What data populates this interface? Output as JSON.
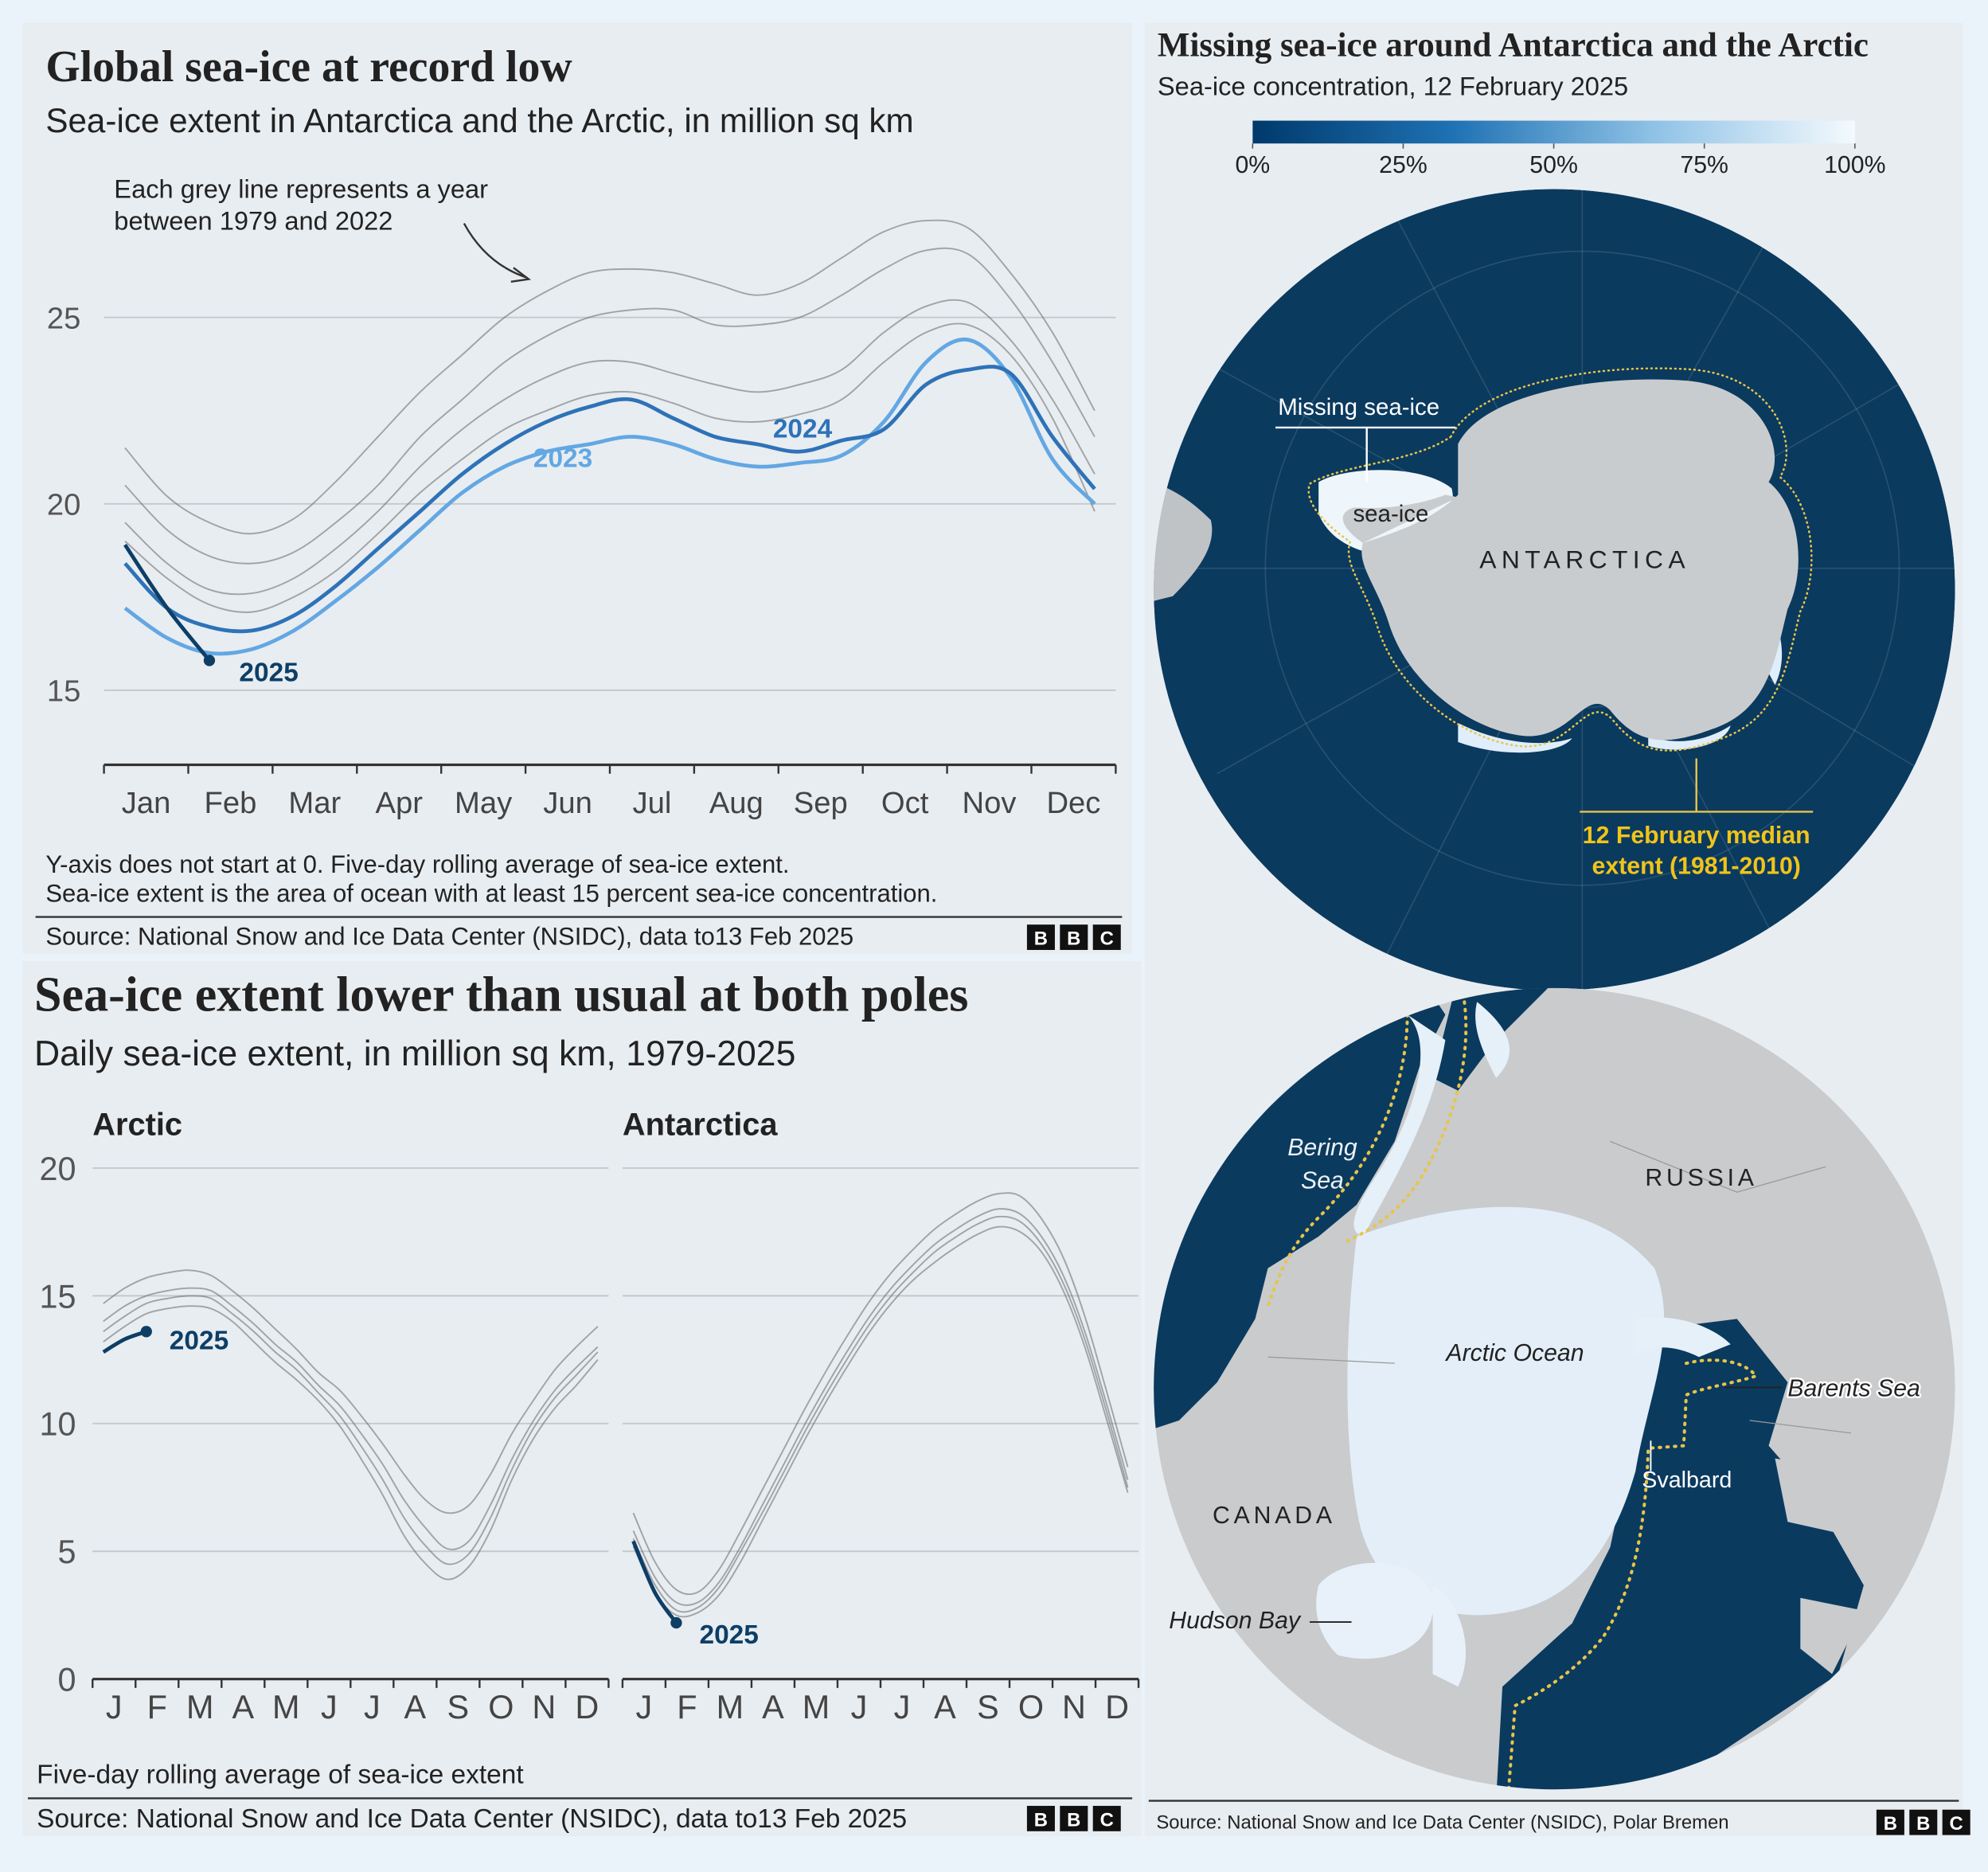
{
  "chart_data": [
    {
      "type": "line",
      "title": "Global sea-ice at record low",
      "subtitle": "Sea-ice extent in Antarctica and the Arctic, in million sq km",
      "annotation": [
        "Each grey line represents a year",
        "between 1979 and 2022"
      ],
      "categories": [
        "Jan",
        null,
        "Feb",
        null,
        "Mar",
        null,
        "Apr",
        null,
        "May",
        null,
        "Jun",
        null,
        "Jul",
        null,
        "Aug",
        null,
        "Sep",
        null,
        "Oct",
        null,
        "Nov",
        null,
        "Dec",
        null
      ],
      "series": [
        {
          "color": "#666666",
          "values": [
            21.5,
            20.2,
            19.5,
            19.2,
            19.6,
            20.6,
            21.8,
            23.0,
            24.0,
            25.0,
            25.7,
            26.2,
            26.3,
            26.2,
            25.9,
            25.6,
            25.9,
            26.6,
            27.3,
            27.6,
            27.4,
            26.2,
            24.6,
            22.5
          ]
        },
        {
          "color": "#666666",
          "values": [
            20.5,
            19.3,
            18.6,
            18.4,
            18.7,
            19.5,
            20.5,
            21.8,
            22.8,
            23.8,
            24.5,
            25.0,
            25.2,
            25.2,
            24.8,
            24.8,
            25.0,
            25.6,
            26.3,
            26.8,
            26.7,
            25.5,
            23.8,
            21.8
          ]
        },
        {
          "color": "#666666",
          "values": [
            19.5,
            18.4,
            17.7,
            17.6,
            18.0,
            18.8,
            19.8,
            21.0,
            22.0,
            22.8,
            23.4,
            23.8,
            23.8,
            23.5,
            23.2,
            23.0,
            23.2,
            23.6,
            24.6,
            25.3,
            25.4,
            24.4,
            22.8,
            20.8
          ]
        },
        {
          "color": "#666666",
          "values": [
            19.0,
            18.0,
            17.3,
            17.1,
            17.5,
            18.2,
            19.2,
            20.3,
            21.2,
            22.0,
            22.5,
            22.9,
            23.0,
            22.7,
            22.3,
            22.2,
            22.4,
            22.8,
            23.8,
            24.6,
            24.8,
            24.0,
            22.3,
            19.8
          ]
        },
        {
          "name": "2023",
          "color": "#63a7e3",
          "values": [
            17.2,
            16.4,
            16.0,
            16.1,
            16.6,
            17.4,
            18.3,
            19.3,
            20.3,
            21.0,
            21.4,
            21.6,
            21.8,
            21.6,
            21.2,
            21.0,
            21.1,
            21.3,
            22.2,
            23.8,
            24.4,
            23.4,
            21.2,
            20.0
          ]
        },
        {
          "name": "2024",
          "color": "#2e72b8",
          "values": [
            18.4,
            17.2,
            16.7,
            16.6,
            17.0,
            17.8,
            18.8,
            19.8,
            20.8,
            21.6,
            22.2,
            22.6,
            22.8,
            22.3,
            21.8,
            21.6,
            21.4,
            21.7,
            22.0,
            23.2,
            23.6,
            23.5,
            21.8,
            20.4
          ]
        },
        {
          "name": "2025",
          "color": "#0d3e66",
          "values": [
            18.9,
            17.2,
            15.8,
            null,
            null,
            null,
            null,
            null,
            null,
            null,
            null,
            null,
            null,
            null,
            null,
            null,
            null,
            null,
            null,
            null,
            null,
            null,
            null,
            null
          ]
        }
      ],
      "ylim": [
        13,
        28
      ],
      "yticks": [
        15,
        20,
        25
      ],
      "grid": true,
      "notes": [
        "Y-axis does not start at 0. Five-day rolling average of sea-ice extent.",
        "Sea-ice extent is the area of ocean with at least 15 percent sea-ice concentration."
      ],
      "source": "Source: National Snow and Ice Data Center (NSIDC), data to13 Feb 2025",
      "logo": "BBC"
    },
    {
      "type": "line",
      "title": "Sea-ice extent lower than usual at both poles",
      "subtitle": "Daily sea-ice extent, in million sq km, 1979-2025",
      "label": "Arctic",
      "categories": [
        "J",
        null,
        "F",
        null,
        "M",
        null,
        "A",
        null,
        "M",
        null,
        "J",
        null,
        "J",
        null,
        "A",
        null,
        "S",
        null,
        "O",
        null,
        "N",
        null,
        "D",
        null
      ],
      "series": [
        {
          "color": "#666666",
          "values": [
            14.7,
            15.3,
            15.7,
            15.9,
            16.0,
            15.8,
            15.2,
            14.5,
            13.7,
            12.9,
            12.0,
            11.3,
            10.3,
            9.2,
            8.0,
            7.0,
            6.5,
            6.8,
            8.0,
            9.6,
            10.9,
            12.1,
            13.0,
            13.8
          ]
        },
        {
          "color": "#666666",
          "values": [
            14.0,
            14.6,
            15.0,
            15.2,
            15.3,
            15.2,
            14.6,
            13.9,
            13.1,
            12.4,
            11.5,
            10.7,
            9.6,
            8.4,
            7.0,
            5.9,
            5.1,
            5.4,
            6.8,
            8.6,
            10.1,
            11.3,
            12.2,
            13.0
          ]
        },
        {
          "color": "#666666",
          "values": [
            13.6,
            14.2,
            14.7,
            14.9,
            15.0,
            14.9,
            14.3,
            13.6,
            12.8,
            12.1,
            11.2,
            10.3,
            9.1,
            7.8,
            6.3,
            5.2,
            4.5,
            4.9,
            6.3,
            8.2,
            9.8,
            11.0,
            11.9,
            12.8
          ]
        },
        {
          "color": "#666666",
          "values": [
            13.2,
            13.8,
            14.3,
            14.5,
            14.6,
            14.5,
            14.0,
            13.2,
            12.4,
            11.7,
            10.9,
            9.9,
            8.6,
            7.2,
            5.6,
            4.5,
            3.9,
            4.4,
            5.8,
            7.8,
            9.4,
            10.6,
            11.5,
            12.5
          ]
        },
        {
          "name": "2025",
          "color": "#0d3e66",
          "values": [
            12.8,
            13.3,
            13.6,
            null,
            null,
            null,
            null,
            null,
            null,
            null,
            null,
            null,
            null,
            null,
            null,
            null,
            null,
            null,
            null,
            null,
            null,
            null,
            null,
            null
          ]
        }
      ],
      "ylim": [
        0,
        20
      ],
      "yticks": [
        0,
        5,
        10,
        15,
        20
      ],
      "grid": true,
      "note": "Five-day rolling average of sea-ice extent",
      "source": "Source: National Snow and Ice Data Center (NSIDC), data to13 Feb 2025",
      "logo": "BBC"
    },
    {
      "type": "line",
      "label": "Antarctica",
      "categories": [
        "J",
        null,
        "F",
        null,
        "M",
        null,
        "A",
        null,
        "M",
        null,
        "J",
        null,
        "J",
        null,
        "A",
        null,
        "S",
        null,
        "O",
        null,
        "N",
        null,
        "D",
        null
      ],
      "series": [
        {
          "color": "#666666",
          "values": [
            6.5,
            4.6,
            3.5,
            3.4,
            4.3,
            5.8,
            7.4,
            9.0,
            10.6,
            12.1,
            13.5,
            14.8,
            15.9,
            16.8,
            17.6,
            18.2,
            18.7,
            19.0,
            18.9,
            18.0,
            16.5,
            14.2,
            11.3,
            8.3
          ]
        },
        {
          "color": "#666666",
          "values": [
            5.8,
            4.0,
            3.0,
            3.0,
            3.8,
            5.2,
            6.8,
            8.4,
            10.0,
            11.5,
            12.9,
            14.2,
            15.3,
            16.2,
            17.0,
            17.6,
            18.1,
            18.4,
            18.2,
            17.3,
            15.8,
            13.6,
            10.8,
            7.8
          ]
        },
        {
          "color": "#666666",
          "values": [
            5.5,
            3.7,
            2.7,
            2.8,
            3.6,
            5.0,
            6.5,
            8.1,
            9.7,
            11.2,
            12.6,
            13.9,
            15.0,
            15.9,
            16.7,
            17.3,
            17.8,
            18.1,
            17.9,
            17.0,
            15.5,
            13.3,
            10.5,
            7.5
          ]
        },
        {
          "color": "#666666",
          "values": [
            5.2,
            3.4,
            2.5,
            2.6,
            3.3,
            4.6,
            6.2,
            7.8,
            9.4,
            10.9,
            12.3,
            13.6,
            14.7,
            15.6,
            16.3,
            16.9,
            17.4,
            17.7,
            17.5,
            16.7,
            15.2,
            13.0,
            10.2,
            7.3
          ]
        },
        {
          "name": "2025",
          "color": "#0d3e66",
          "values": [
            5.4,
            3.4,
            2.2,
            null,
            null,
            null,
            null,
            null,
            null,
            null,
            null,
            null,
            null,
            null,
            null,
            null,
            null,
            null,
            null,
            null,
            null,
            null,
            null,
            null
          ]
        }
      ],
      "ylim": [
        0,
        20
      ],
      "yticks": [
        0,
        5,
        10,
        15,
        20
      ],
      "grid": true
    }
  ],
  "map": {
    "title": "Missing sea-ice around Antarctica and the Arctic",
    "subtitle": "Sea-ice concentration, 12 February 2025",
    "colorbar": {
      "lim": [
        0,
        100
      ],
      "ticks": [
        {
          "value": 0,
          "label": "0%"
        },
        {
          "value": 25,
          "label": "25%"
        },
        {
          "value": 50,
          "label": "50%"
        },
        {
          "value": 75,
          "label": "75%"
        },
        {
          "value": 100,
          "label": "100%"
        }
      ],
      "colors": [
        "#00396b",
        "#1f72b4",
        "#8fc2e6",
        "#f4fafd"
      ]
    },
    "antarctic": {
      "missing": "Missing sea-ice",
      "seaice": "sea-ice",
      "continent": "ANTARCTICA",
      "median": [
        "12 February median",
        "extent (1981-2010)"
      ]
    },
    "arctic": {
      "bering": [
        "Bering",
        "Sea"
      ],
      "russia": "RUSSIA",
      "ocean": "Arctic Ocean",
      "barents": "Barents Sea",
      "svalbard": "Svalbard",
      "canada": "CANADA",
      "hudson": "Hudson Bay"
    },
    "source": "Source: National Snow and Ice Data Center (NSIDC), Polar Bremen",
    "logo": "BBC"
  }
}
